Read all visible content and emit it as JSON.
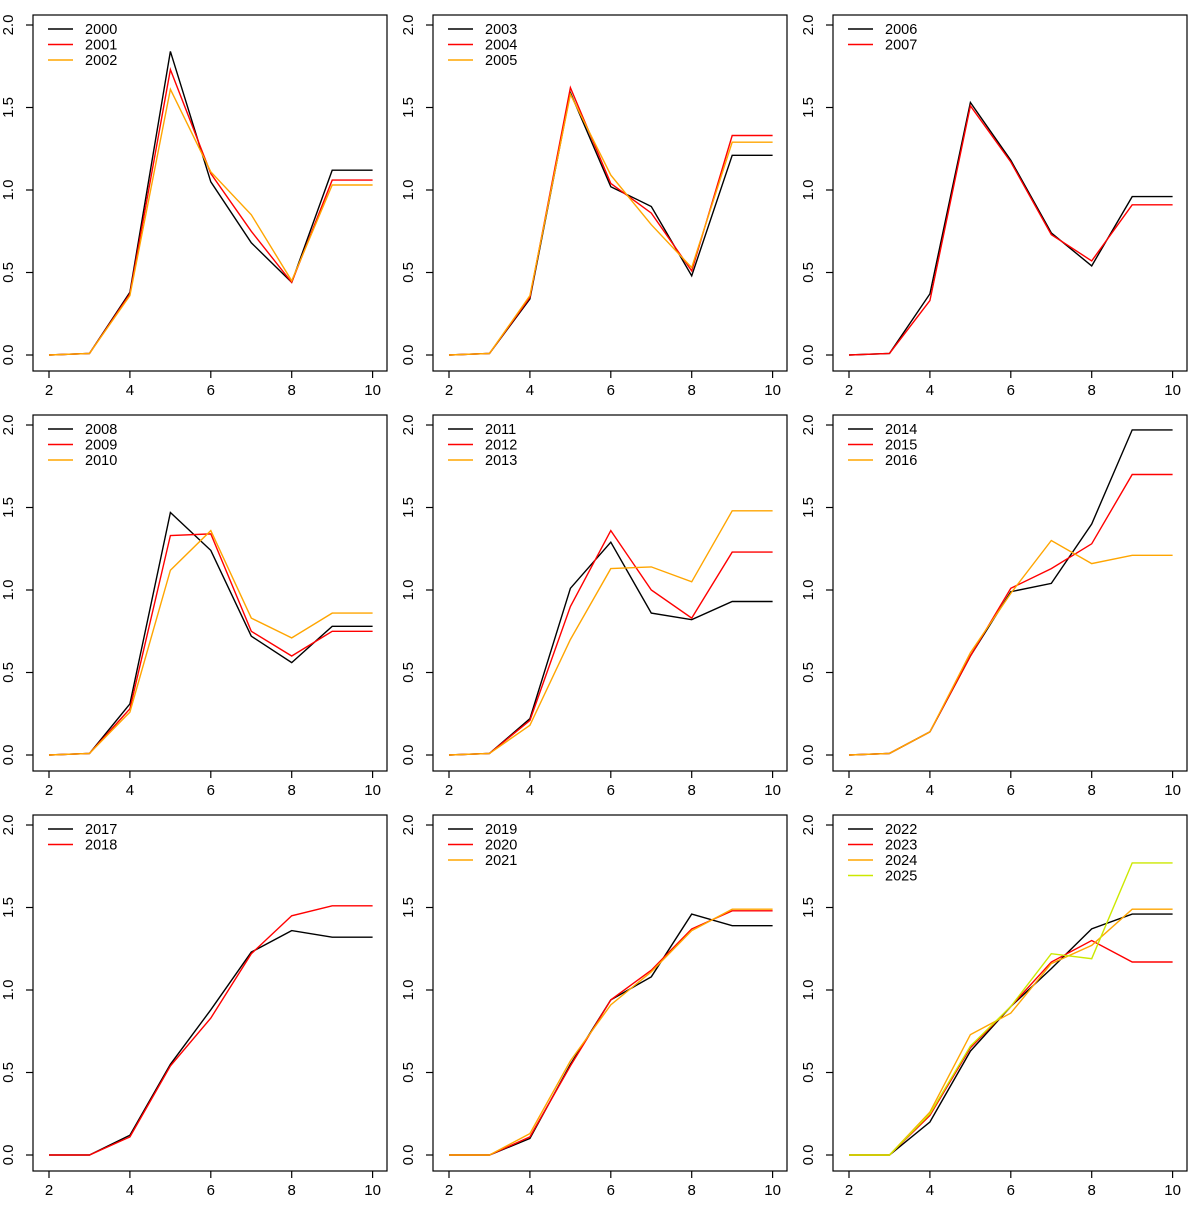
{
  "page": {
    "background": "#ffffff",
    "description": "3x3 grid of R-style line chart panels, yearly curves 2000-2025"
  },
  "axes": {
    "xlim": [
      2,
      10
    ],
    "ylim": [
      0,
      2
    ],
    "x_ticks": [
      2,
      4,
      6,
      8,
      10
    ],
    "y_ticks": [
      0,
      0.5,
      1,
      1.5,
      2
    ],
    "x_tick_labels": [
      "2",
      "4",
      "6",
      "8",
      "10"
    ],
    "y_tick_labels": [
      "0.0",
      "0.5",
      "1.0",
      "1.5",
      "2.0"
    ],
    "grid": false
  },
  "colors": {
    "series_1": "#000000",
    "series_2": "#FF0000",
    "series_3": "#FFA500",
    "series_4": "#CCE800"
  },
  "chart_data": [
    {
      "type": "line",
      "x": [
        2,
        3,
        4,
        5,
        6,
        7,
        8,
        9,
        10
      ],
      "xlim": [
        2,
        10
      ],
      "ylim": [
        0,
        2
      ],
      "legend_position": "top-left",
      "series": [
        {
          "name": "2000",
          "color": "#000000",
          "values": [
            0.0,
            0.01,
            0.38,
            1.84,
            1.05,
            0.68,
            0.44,
            1.12,
            1.12
          ]
        },
        {
          "name": "2001",
          "color": "#FF0000",
          "values": [
            0.0,
            0.01,
            0.37,
            1.73,
            1.1,
            0.75,
            0.44,
            1.06,
            1.06
          ]
        },
        {
          "name": "2002",
          "color": "#FFA500",
          "values": [
            0.0,
            0.01,
            0.36,
            1.61,
            1.11,
            0.85,
            0.45,
            1.03,
            1.03
          ]
        }
      ]
    },
    {
      "type": "line",
      "x": [
        2,
        3,
        4,
        5,
        6,
        7,
        8,
        9,
        10
      ],
      "xlim": [
        2,
        10
      ],
      "ylim": [
        0,
        2
      ],
      "legend_position": "top-left",
      "series": [
        {
          "name": "2003",
          "color": "#000000",
          "values": [
            0.0,
            0.01,
            0.34,
            1.59,
            1.02,
            0.9,
            0.48,
            1.21,
            1.21
          ]
        },
        {
          "name": "2004",
          "color": "#FF0000",
          "values": [
            0.0,
            0.01,
            0.35,
            1.62,
            1.04,
            0.86,
            0.51,
            1.33,
            1.33
          ]
        },
        {
          "name": "2005",
          "color": "#FFA500",
          "values": [
            0.0,
            0.01,
            0.36,
            1.58,
            1.09,
            0.79,
            0.53,
            1.29,
            1.29
          ]
        }
      ]
    },
    {
      "type": "line",
      "x": [
        2,
        3,
        4,
        5,
        6,
        7,
        8,
        9,
        10
      ],
      "xlim": [
        2,
        10
      ],
      "ylim": [
        0,
        2
      ],
      "legend_position": "top-left",
      "series": [
        {
          "name": "2006",
          "color": "#000000",
          "values": [
            0.0,
            0.01,
            0.37,
            1.53,
            1.18,
            0.74,
            0.54,
            0.96,
            0.96
          ]
        },
        {
          "name": "2007",
          "color": "#FF0000",
          "values": [
            0.0,
            0.01,
            0.33,
            1.51,
            1.17,
            0.73,
            0.57,
            0.91,
            0.91
          ]
        }
      ]
    },
    {
      "type": "line",
      "x": [
        2,
        3,
        4,
        5,
        6,
        7,
        8,
        9,
        10
      ],
      "xlim": [
        2,
        10
      ],
      "ylim": [
        0,
        2
      ],
      "legend_position": "top-left",
      "series": [
        {
          "name": "2008",
          "color": "#000000",
          "values": [
            0.0,
            0.01,
            0.31,
            1.47,
            1.24,
            0.72,
            0.56,
            0.78,
            0.78
          ]
        },
        {
          "name": "2009",
          "color": "#FF0000",
          "values": [
            0.0,
            0.01,
            0.28,
            1.33,
            1.34,
            0.75,
            0.6,
            0.75,
            0.75
          ]
        },
        {
          "name": "2010",
          "color": "#FFA500",
          "values": [
            0.0,
            0.01,
            0.26,
            1.12,
            1.36,
            0.83,
            0.71,
            0.86,
            0.86
          ]
        }
      ]
    },
    {
      "type": "line",
      "x": [
        2,
        3,
        4,
        5,
        6,
        7,
        8,
        9,
        10
      ],
      "xlim": [
        2,
        10
      ],
      "ylim": [
        0,
        2
      ],
      "legend_position": "top-left",
      "series": [
        {
          "name": "2011",
          "color": "#000000",
          "values": [
            0.0,
            0.01,
            0.22,
            1.01,
            1.29,
            0.86,
            0.82,
            0.93,
            0.93
          ]
        },
        {
          "name": "2012",
          "color": "#FF0000",
          "values": [
            0.0,
            0.01,
            0.21,
            0.9,
            1.36,
            1.0,
            0.83,
            1.23,
            1.23
          ]
        },
        {
          "name": "2013",
          "color": "#FFA500",
          "values": [
            0.0,
            0.01,
            0.18,
            0.7,
            1.13,
            1.14,
            1.05,
            1.48,
            1.48
          ]
        }
      ]
    },
    {
      "type": "line",
      "x": [
        2,
        3,
        4,
        5,
        6,
        7,
        8,
        9,
        10
      ],
      "xlim": [
        2,
        10
      ],
      "ylim": [
        0,
        2
      ],
      "legend_position": "top-left",
      "series": [
        {
          "name": "2014",
          "color": "#000000",
          "values": [
            0.0,
            0.01,
            0.14,
            0.6,
            0.99,
            1.04,
            1.4,
            1.97,
            1.97
          ]
        },
        {
          "name": "2015",
          "color": "#FF0000",
          "values": [
            0.0,
            0.01,
            0.14,
            0.6,
            1.01,
            1.13,
            1.28,
            1.7,
            1.7
          ]
        },
        {
          "name": "2016",
          "color": "#FFA500",
          "values": [
            0.0,
            0.01,
            0.14,
            0.62,
            0.98,
            1.3,
            1.16,
            1.21,
            1.21
          ]
        }
      ]
    },
    {
      "type": "line",
      "x": [
        2,
        3,
        4,
        5,
        6,
        7,
        8,
        9,
        10
      ],
      "xlim": [
        2,
        10
      ],
      "ylim": [
        0,
        2
      ],
      "legend_position": "top-left",
      "series": [
        {
          "name": "2017",
          "color": "#000000",
          "values": [
            0.0,
            0.0,
            0.12,
            0.55,
            0.88,
            1.23,
            1.36,
            1.32,
            1.32
          ]
        },
        {
          "name": "2018",
          "color": "#FF0000",
          "values": [
            0.0,
            0.0,
            0.11,
            0.54,
            0.83,
            1.22,
            1.45,
            1.51,
            1.51
          ]
        }
      ]
    },
    {
      "type": "line",
      "x": [
        2,
        3,
        4,
        5,
        6,
        7,
        8,
        9,
        10
      ],
      "xlim": [
        2,
        10
      ],
      "ylim": [
        0,
        2
      ],
      "legend_position": "top-left",
      "series": [
        {
          "name": "2019",
          "color": "#000000",
          "values": [
            0.0,
            0.0,
            0.1,
            0.55,
            0.94,
            1.08,
            1.46,
            1.39,
            1.39
          ]
        },
        {
          "name": "2020",
          "color": "#FF0000",
          "values": [
            0.0,
            0.0,
            0.11,
            0.54,
            0.94,
            1.12,
            1.37,
            1.48,
            1.48
          ]
        },
        {
          "name": "2021",
          "color": "#FFA500",
          "values": [
            0.0,
            0.0,
            0.13,
            0.57,
            0.91,
            1.11,
            1.36,
            1.49,
            1.49
          ]
        }
      ]
    },
    {
      "type": "line",
      "x": [
        2,
        3,
        4,
        5,
        6,
        7,
        8,
        9,
        10
      ],
      "xlim": [
        2,
        10
      ],
      "ylim": [
        0,
        2
      ],
      "legend_position": "top-left",
      "series": [
        {
          "name": "2022",
          "color": "#000000",
          "values": [
            0.0,
            0.0,
            0.2,
            0.63,
            0.9,
            1.13,
            1.37,
            1.46,
            1.46
          ]
        },
        {
          "name": "2023",
          "color": "#FF0000",
          "values": [
            0.0,
            0.0,
            0.24,
            0.65,
            0.9,
            1.17,
            1.3,
            1.17,
            1.17
          ]
        },
        {
          "name": "2024",
          "color": "#FFA500",
          "values": [
            0.0,
            0.0,
            0.26,
            0.73,
            0.86,
            1.16,
            1.27,
            1.49,
            1.49
          ]
        },
        {
          "name": "2025",
          "color": "#CCE800",
          "values": [
            0.0,
            0.0,
            0.25,
            0.66,
            0.9,
            1.22,
            1.19,
            1.77,
            1.77
          ]
        }
      ]
    }
  ]
}
